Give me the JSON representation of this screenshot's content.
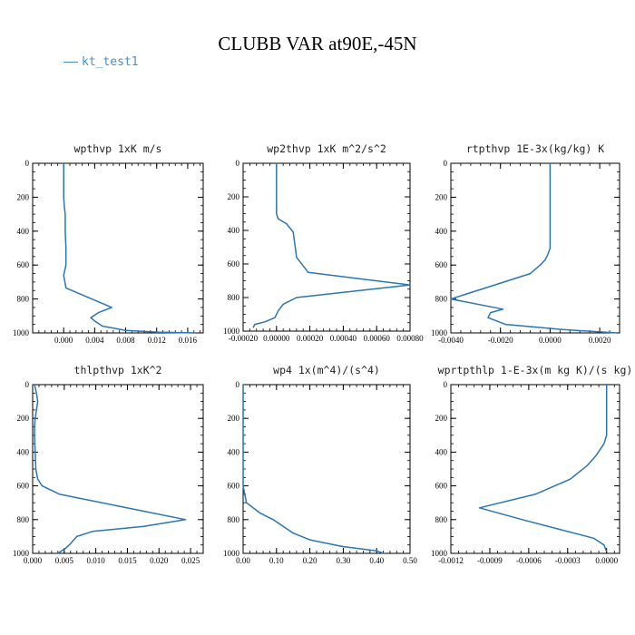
{
  "title": "CLUBB VAR at90E,-45N",
  "legend": {
    "label": "kt_test1",
    "color": "#4b8fc2"
  },
  "line_color": "#2a75b3",
  "chart_data": [
    {
      "type": "line",
      "title": "wpthvp  1xK m/s",
      "xlim": [
        -0.004,
        0.018
      ],
      "xticks": [
        0.0,
        0.004,
        0.008,
        0.012,
        0.016
      ],
      "xtick_labels": [
        "0.000",
        "0.004",
        "0.008",
        "0.012",
        "0.016"
      ],
      "ylim": [
        0,
        1000
      ],
      "yticks": [
        0,
        200,
        400,
        600,
        800,
        1000
      ],
      "ytick_labels": [
        "0",
        "200",
        "400",
        "600",
        "800",
        "1000"
      ],
      "series": [
        {
          "x": [
            0.0,
            0.0,
            0.0,
            0.0001,
            0.0002,
            0.0002,
            0.0003,
            0.0003,
            0.0,
            0.0003,
            0.0062,
            0.0045,
            0.0035,
            0.004,
            0.005,
            0.008,
            0.012,
            0.017
          ],
          "y": [
            0,
            100,
            200,
            260,
            300,
            400,
            500,
            600,
            660,
            735,
            850,
            880,
            910,
            930,
            960,
            985,
            995,
            1000
          ]
        }
      ]
    },
    {
      "type": "line",
      "title": "wp2thvp  1xK m^2/s^2",
      "xlim": [
        -0.0002,
        0.0008
      ],
      "xticks": [
        -0.0002,
        0.0,
        0.0002,
        0.0004,
        0.0006,
        0.0008
      ],
      "xtick_labels": [
        "-0.00020",
        "0.00000",
        "0.00020",
        "0.00040",
        "0.00060",
        "0.00080"
      ],
      "ylim": [
        0,
        1000
      ],
      "yticks": [
        0,
        200,
        400,
        600,
        800,
        1000
      ],
      "ytick_labels": [
        "0",
        "200",
        "400",
        "600",
        "800",
        "1000"
      ],
      "series": [
        {
          "x": [
            0.0,
            0.0,
            0.0,
            0.0,
            1e-05,
            6e-05,
            0.0001,
            0.00011,
            0.00012,
            0.00019,
            0.0008,
            0.00012,
            4e-05,
            1e-05,
            -1e-05,
            -7e-05,
            -0.00013,
            -0.00014
          ],
          "y": [
            0,
            100,
            200,
            300,
            330,
            360,
            410,
            480,
            560,
            650,
            725,
            800,
            840,
            880,
            920,
            945,
            960,
            980
          ]
        }
      ]
    },
    {
      "type": "line",
      "title": "rtpthvp  1E-3x(kg/kg) K",
      "xlim": [
        -0.004,
        0.0028
      ],
      "xticks": [
        -0.004,
        -0.002,
        0.0,
        0.002
      ],
      "xtick_labels": [
        "-0.0040",
        "-0.0020",
        "0.0000",
        "0.0020"
      ],
      "ylim": [
        0,
        1000
      ],
      "yticks": [
        0,
        200,
        400,
        600,
        800,
        1000
      ],
      "ytick_labels": [
        "0",
        "200",
        "400",
        "600",
        "800",
        "1000"
      ],
      "series": [
        {
          "x": [
            0.0,
            0.0,
            0.0,
            0.0,
            -0.0001,
            -0.0002,
            -0.0004,
            -0.0008,
            -0.0025,
            -0.004,
            -0.0019,
            -0.0024,
            -0.0025,
            -0.0018,
            0.0005,
            0.0027
          ],
          "y": [
            0,
            200,
            400,
            500,
            540,
            570,
            600,
            650,
            730,
            800,
            860,
            880,
            910,
            950,
            980,
            1000
          ]
        }
      ]
    },
    {
      "type": "line",
      "title": "thlpthvp  1xK^2",
      "xlim": [
        0.0,
        0.027
      ],
      "xticks": [
        0.0,
        0.005,
        0.01,
        0.015,
        0.02,
        0.025
      ],
      "xtick_labels": [
        "0.000",
        "0.005",
        "0.010",
        "0.015",
        "0.020",
        "0.025"
      ],
      "ylim": [
        0,
        1000
      ],
      "yticks": [
        0,
        200,
        400,
        600,
        800,
        1000
      ],
      "ytick_labels": [
        "0",
        "200",
        "400",
        "600",
        "800",
        "1000"
      ],
      "series": [
        {
          "x": [
            0.0003,
            0.0006,
            0.0008,
            0.0006,
            0.0004,
            0.0003,
            0.0003,
            0.0004,
            0.0005,
            0.0008,
            0.0015,
            0.0043,
            0.0242,
            0.0176,
            0.0095,
            0.007,
            0.0058,
            0.0052,
            0.004
          ],
          "y": [
            0,
            50,
            100,
            150,
            200,
            250,
            300,
            400,
            500,
            560,
            600,
            650,
            800,
            840,
            870,
            900,
            950,
            970,
            1000
          ]
        }
      ]
    },
    {
      "type": "line",
      "title": "wp4  1x(m^4)/(s^4)",
      "xlim": [
        0.0,
        0.5
      ],
      "xticks": [
        0.0,
        0.1,
        0.2,
        0.3,
        0.4,
        0.5
      ],
      "xtick_labels": [
        "0.00",
        "0.10",
        "0.20",
        "0.30",
        "0.40",
        "0.50"
      ],
      "ylim": [
        0,
        1000
      ],
      "yticks": [
        0,
        200,
        400,
        600,
        800,
        1000
      ],
      "ytick_labels": [
        "0",
        "200",
        "400",
        "600",
        "800",
        "1000"
      ],
      "series": [
        {
          "x": [
            0.0,
            0.0,
            0.0,
            0.0,
            0.0,
            0.0,
            0.0,
            0.01,
            0.05,
            0.09,
            0.12,
            0.15,
            0.2,
            0.3,
            0.4,
            0.42
          ],
          "y": [
            0,
            100,
            200,
            300,
            400,
            500,
            600,
            700,
            760,
            800,
            840,
            880,
            920,
            960,
            985,
            1000
          ]
        }
      ]
    },
    {
      "type": "line",
      "title": "wprtpthlp  1-E-3x(m kg K)/(s kg)",
      "xlim": [
        -0.0012,
        0.0001
      ],
      "xticks": [
        -0.0012,
        -0.0009,
        -0.0006,
        -0.0003,
        0.0
      ],
      "xtick_labels": [
        "-0.0012",
        "-0.0009",
        "-0.0006",
        "-0.0003",
        "0.0000"
      ],
      "ylim": [
        0,
        1000
      ],
      "yticks": [
        0,
        200,
        400,
        600,
        800,
        1000
      ],
      "ytick_labels": [
        "0",
        "200",
        "400",
        "600",
        "800",
        "1000"
      ],
      "series": [
        {
          "x": [
            0.0,
            0.0,
            0.0,
            0.0,
            -2e-05,
            -8e-05,
            -0.00015,
            -0.00028,
            -0.00055,
            -0.00098,
            -0.00065,
            -0.00035,
            -0.0001,
            -2e-05,
            0.0
          ],
          "y": [
            0,
            100,
            200,
            300,
            350,
            420,
            480,
            560,
            650,
            730,
            800,
            860,
            910,
            950,
            990
          ]
        }
      ]
    }
  ]
}
